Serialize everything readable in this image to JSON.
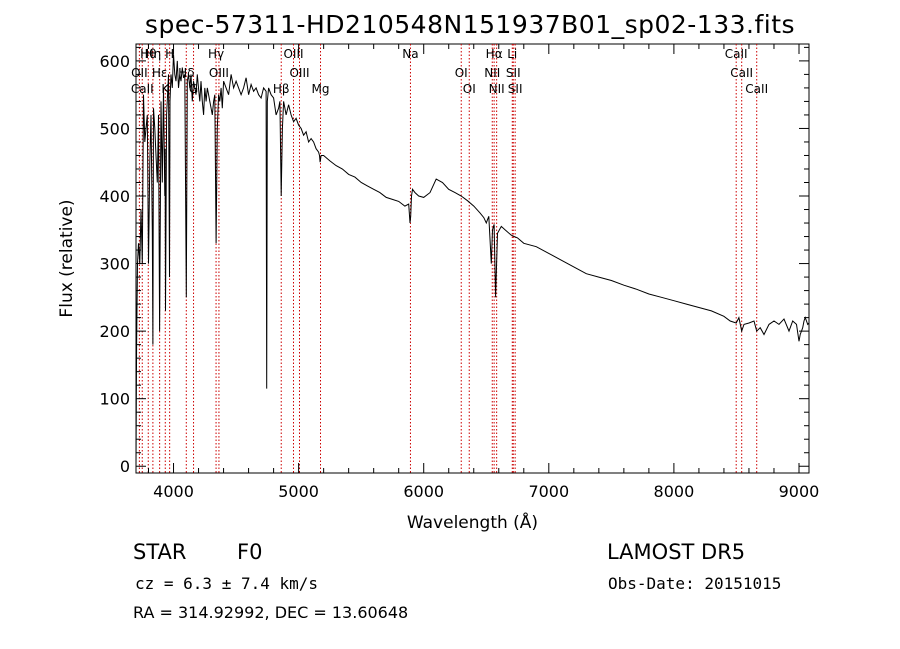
{
  "page": {
    "title": "spec-57311-HD210548N151937B01_sp02-133.fits",
    "class_label": "STAR",
    "subclass_label": "F0",
    "survey_label": "LAMOST DR5",
    "cz_text": "cz = 6.3 ± 7.4 km/s",
    "obs_date_text": "Obs-Date: 20151015",
    "coords_text": "RA = 314.92992, DEC =  13.60648"
  },
  "chart_data": {
    "type": "line",
    "title": "spec-57311-HD210548N151937B01_sp02-133.fits",
    "xlabel": "Wavelength (Å)",
    "ylabel": "Flux (relative)",
    "xlim": [
      3700,
      9080
    ],
    "ylim": [
      -10,
      625
    ],
    "xticks": [
      4000,
      5000,
      6000,
      7000,
      8000,
      9000
    ],
    "yticks": [
      0,
      100,
      200,
      300,
      400,
      500,
      600
    ],
    "grid": false,
    "colors": {
      "spectrum": "#000000",
      "lines": "#cc0000"
    },
    "series": [
      {
        "x": [
          3700,
          3705,
          3712,
          3720,
          3730,
          3740,
          3750,
          3760,
          3770,
          3780,
          3790,
          3800,
          3810,
          3820,
          3830,
          3835,
          3840,
          3850,
          3860,
          3870,
          3880,
          3889,
          3900,
          3910,
          3920,
          3930,
          3933,
          3936,
          3945,
          3955,
          3960,
          3968,
          3972,
          3980,
          3990,
          4000,
          4010,
          4020,
          4030,
          4040,
          4050,
          4060,
          4070,
          4080,
          4090,
          4102,
          4110,
          4120,
          4130,
          4140,
          4150,
          4160,
          4170,
          4180,
          4190,
          4200,
          4210,
          4220,
          4230,
          4240,
          4250,
          4260,
          4270,
          4280,
          4290,
          4300,
          4310,
          4320,
          4330,
          4340,
          4350,
          4360,
          4370,
          4380,
          4390,
          4400,
          4420,
          4440,
          4460,
          4480,
          4500,
          4520,
          4540,
          4560,
          4580,
          4600,
          4620,
          4640,
          4660,
          4680,
          4700,
          4720,
          4740,
          4745,
          4750,
          4760,
          4780,
          4800,
          4820,
          4840,
          4850,
          4861,
          4870,
          4880,
          4890,
          4900,
          4920,
          4940,
          4960,
          4980,
          5000,
          5020,
          5040,
          5060,
          5080,
          5100,
          5120,
          5140,
          5160,
          5167,
          5172,
          5180,
          5200,
          5250,
          5300,
          5350,
          5400,
          5450,
          5500,
          5550,
          5600,
          5650,
          5700,
          5750,
          5800,
          5850,
          5880,
          5890,
          5896,
          5902,
          5910,
          5930,
          5960,
          6000,
          6050,
          6100,
          6150,
          6200,
          6250,
          6300,
          6350,
          6400,
          6450,
          6480,
          6500,
          6510,
          6520,
          6540,
          6550,
          6563,
          6575,
          6590,
          6620,
          6650,
          6700,
          6750,
          6800,
          6900,
          7000,
          7100,
          7200,
          7300,
          7400,
          7500,
          7600,
          7700,
          7800,
          7900,
          8000,
          8100,
          8200,
          8300,
          8400,
          8450,
          8498,
          8520,
          8542,
          8560,
          8600,
          8640,
          8662,
          8690,
          8720,
          8760,
          8800,
          8840,
          8880,
          8920,
          8950,
          8980,
          9000,
          9010,
          9020,
          9030,
          9040,
          9050,
          9060,
          9070,
          9080
        ],
        "y": [
          0,
          180,
          300,
          330,
          300,
          380,
          300,
          550,
          480,
          500,
          520,
          300,
          450,
          520,
          350,
          180,
          530,
          500,
          460,
          420,
          520,
          200,
          540,
          420,
          560,
          400,
          470,
          230,
          520,
          560,
          580,
          280,
          540,
          580,
          560,
          610,
          580,
          570,
          600,
          560,
          580,
          570,
          590,
          575,
          580,
          250,
          570,
          580,
          560,
          580,
          540,
          570,
          560,
          550,
          580,
          560,
          540,
          570,
          540,
          520,
          560,
          540,
          560,
          550,
          540,
          530,
          520,
          540,
          550,
          330,
          500,
          550,
          540,
          560,
          530,
          570,
          560,
          550,
          580,
          560,
          570,
          560,
          550,
          560,
          575,
          550,
          565,
          555,
          560,
          550,
          545,
          560,
          555,
          115,
          540,
          560,
          550,
          545,
          520,
          530,
          540,
          400,
          500,
          540,
          530,
          520,
          535,
          520,
          510,
          515,
          505,
          500,
          490,
          495,
          480,
          485,
          480,
          470,
          465,
          460,
          450,
          460,
          460,
          452,
          445,
          440,
          432,
          428,
          420,
          415,
          410,
          405,
          398,
          395,
          392,
          385,
          388,
          360,
          370,
          400,
          410,
          405,
          400,
          398,
          405,
          425,
          420,
          410,
          405,
          400,
          393,
          385,
          375,
          368,
          360,
          365,
          370,
          300,
          350,
          358,
          250,
          345,
          355,
          350,
          342,
          338,
          330,
          325,
          315,
          305,
          295,
          285,
          280,
          275,
          268,
          262,
          255,
          250,
          245,
          240,
          235,
          230,
          222,
          215,
          212,
          220,
          200,
          210,
          212,
          215,
          200,
          205,
          195,
          210,
          215,
          210,
          218,
          200,
          215,
          210,
          185,
          195,
          200,
          205,
          215,
          220,
          215,
          210,
          212
        ],
        "extras": [
          {
            "x": 3704,
            "y": 300,
            "type": "bin_step"
          }
        ]
      }
    ],
    "line_markers": [
      {
        "label": "Hθ",
        "x": 3798
      },
      {
        "label": "OII",
        "x": 3727
      },
      {
        "label": "CaII",
        "x": 3750
      },
      {
        "label": "Hη",
        "x": 3835
      },
      {
        "label": "Hε",
        "x": 3889
      },
      {
        "label": "K",
        "x": 3934
      },
      {
        "label": "H",
        "x": 3969
      },
      {
        "label": "Hδ",
        "x": 4102
      },
      {
        "label": "G",
        "x": 4160
      },
      {
        "label": "Hγ",
        "x": 4340
      },
      {
        "label": "OIII",
        "x": 4363
      },
      {
        "label": "Hβ",
        "x": 4861
      },
      {
        "label": "OIII",
        "x": 4959
      },
      {
        "label": "OIII",
        "x": 5007
      },
      {
        "label": "Mg",
        "x": 5175
      },
      {
        "label": "Na",
        "x": 5894
      },
      {
        "label": "OI",
        "x": 6300
      },
      {
        "label": "OI",
        "x": 6364
      },
      {
        "label": "Hα",
        "x": 6563
      },
      {
        "label": "NII",
        "x": 6548
      },
      {
        "label": "NII",
        "x": 6583
      },
      {
        "label": "Li",
        "x": 6708
      },
      {
        "label": "SII",
        "x": 6716
      },
      {
        "label": "SII",
        "x": 6731
      },
      {
        "label": "CaII",
        "x": 8498
      },
      {
        "label": "CaII",
        "x": 8542
      },
      {
        "label": "CaII",
        "x": 8662
      }
    ]
  }
}
